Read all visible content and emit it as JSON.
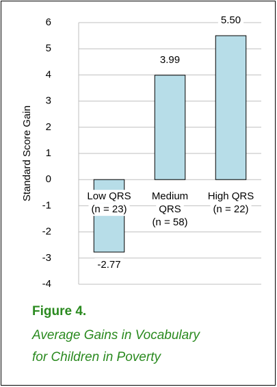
{
  "chart_data": {
    "type": "bar",
    "categories": [
      [
        "Low QRS",
        "(n = 23)"
      ],
      [
        "Medium",
        "QRS",
        "(n = 58)"
      ],
      [
        "High QRS",
        "(n = 22)"
      ]
    ],
    "values": [
      -2.77,
      3.99,
      5.5
    ],
    "value_labels": [
      "-2.77",
      "3.99",
      "5.50"
    ],
    "color": "#b7dde8",
    "y_label": "Standard Score Gain",
    "ylim": [
      -4,
      6
    ],
    "yticks": [
      -4,
      -3,
      -2,
      -1,
      0,
      1,
      2,
      3,
      4,
      5,
      6
    ],
    "grid": true,
    "figure_label": "Figure 4.",
    "caption_lines": [
      "Average Gains in Vocabulary",
      "for Children in Poverty"
    ]
  }
}
